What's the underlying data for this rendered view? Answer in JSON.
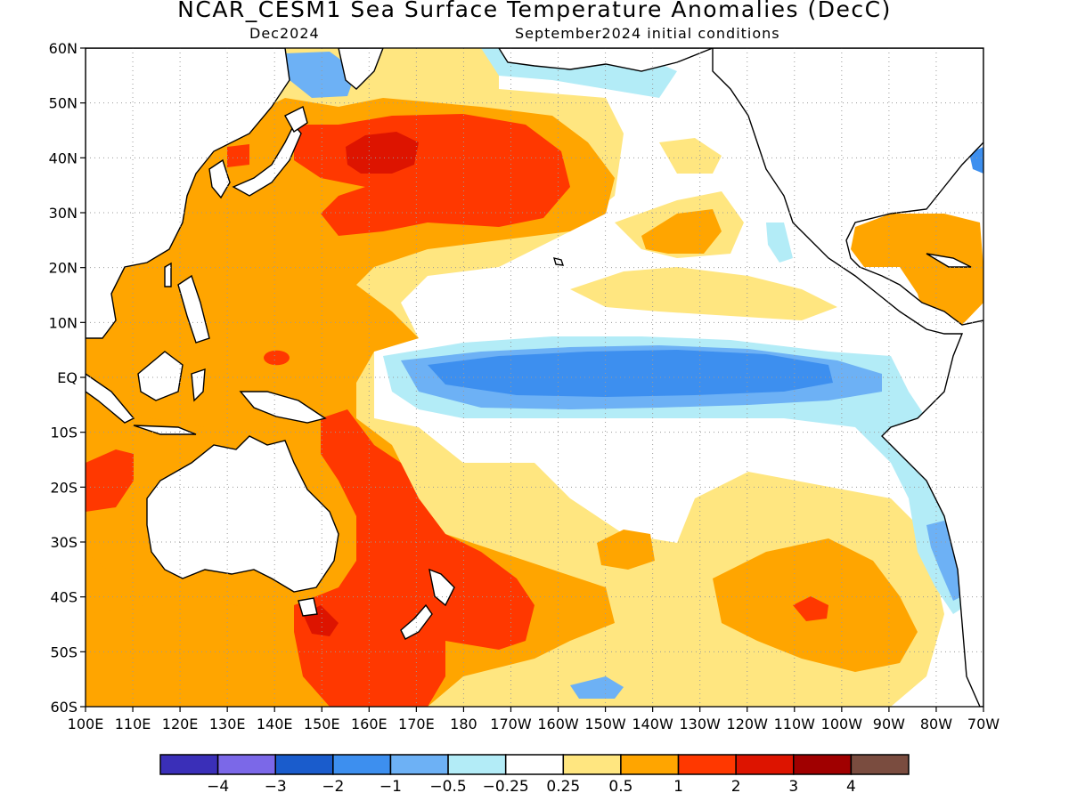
{
  "figure": {
    "title": "NCAR_CESM1 Sea Surface Temperature Anomalies (DecC)",
    "valid_month": "Dec2024",
    "init_conditions": "September2024 initial conditions"
  },
  "map": {
    "lat_labels": [
      "60N",
      "50N",
      "40N",
      "30N",
      "20N",
      "10N",
      "EQ",
      "10S",
      "20S",
      "30S",
      "40S",
      "50S",
      "60S"
    ],
    "lon_labels": [
      "100E",
      "110E",
      "120E",
      "130E",
      "140E",
      "150E",
      "160E",
      "170E",
      "180",
      "170W",
      "160W",
      "150W",
      "140W",
      "130W",
      "120W",
      "110W",
      "100W",
      "90W",
      "80W",
      "70W"
    ],
    "gridlines": "dotted",
    "land_color": "#ffffff",
    "coastline_color": "#000000"
  },
  "colorbar": {
    "colors": [
      "#3a2fb8",
      "#7b68e8",
      "#1a5ccc",
      "#3d8fef",
      "#6db1f5",
      "#b3ecf7",
      "#ffffff",
      "#ffe680",
      "#ffa500",
      "#ff3800",
      "#dd1400",
      "#a00000",
      "#7a4c3f"
    ],
    "labels": [
      "−4",
      "−3",
      "−2",
      "−1",
      "−0.5",
      "−0.25",
      "0.25",
      "0.5",
      "1",
      "2",
      "3",
      "4"
    ]
  }
}
